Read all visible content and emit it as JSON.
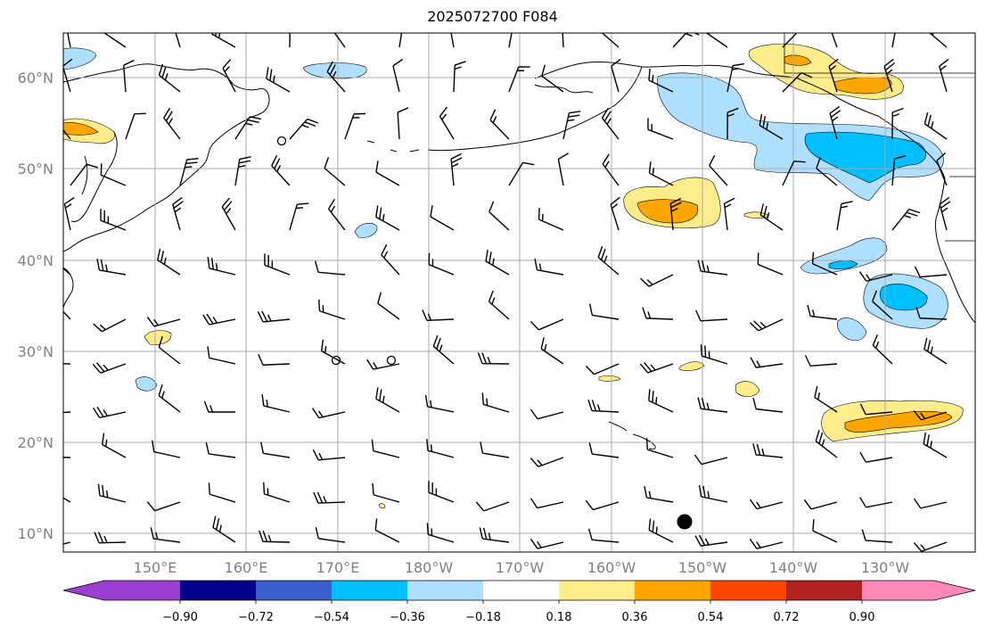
{
  "title": "2025072700 F084",
  "axes": {
    "lat_ticks": [
      "60°N",
      "50°N",
      "40°N",
      "30°N",
      "20°N",
      "10°N"
    ],
    "lon_ticks": [
      "150°E",
      "160°E",
      "170°E",
      "180°W",
      "170°W",
      "160°W",
      "150°W",
      "140°W",
      "130°W"
    ]
  },
  "colorbar": {
    "tick_labels": [
      "−0.90",
      "−0.72",
      "−0.54",
      "−0.36",
      "−0.18",
      "0.18",
      "0.36",
      "0.54",
      "0.72",
      "0.90"
    ],
    "colors": [
      "#9a3fd1",
      "#00008b",
      "#3a5fcd",
      "#00bfff",
      "#b0e0ff",
      "#ffffff",
      "#ffec8b",
      "#ffa500",
      "#ff4500",
      "#b22222",
      "#ff88b8"
    ]
  },
  "chart_data": {
    "type": "map",
    "title": "2025072700 F084",
    "lon_range": [
      140,
      244
    ],
    "lat_range": [
      8,
      65
    ],
    "grid": true,
    "levels": [
      -0.9,
      -0.72,
      -0.54,
      -0.36,
      -0.18,
      0.18,
      0.36,
      0.54,
      0.72,
      0.9
    ],
    "marker": {
      "lon": 208,
      "lat": 11.3
    }
  }
}
